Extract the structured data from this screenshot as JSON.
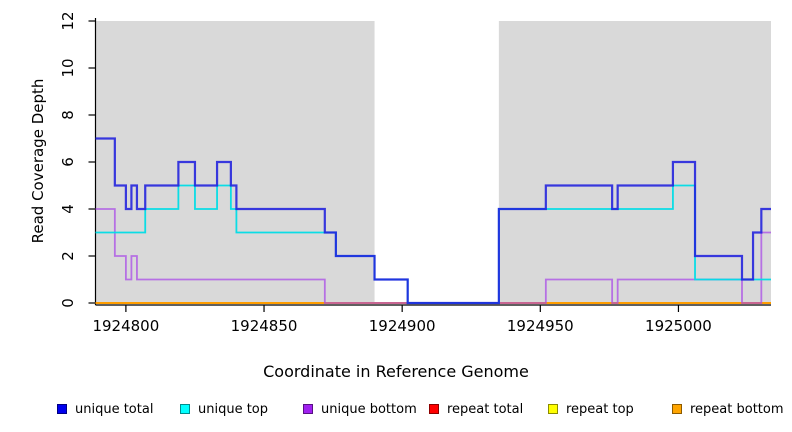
{
  "chart_data": {
    "type": "line",
    "subtype": "step",
    "title": "",
    "xlabel": "Coordinate in Reference Genome",
    "ylabel": "Read Coverage Depth",
    "xlim": [
      1924789,
      1925033.5
    ],
    "ylim": [
      0,
      12
    ],
    "x_ticks": [
      "1924800",
      "1924850",
      "1924900",
      "1924950",
      "1925000"
    ],
    "x_tick_values": [
      1924800,
      1924850,
      1924900,
      1924950,
      1925000
    ],
    "y_ticks": [
      "0",
      "2",
      "4",
      "6",
      "8",
      "10",
      "12"
    ],
    "y_tick_values": [
      0,
      2,
      4,
      6,
      8,
      10,
      12
    ],
    "grid": false,
    "legend_position": "bottom",
    "background_color": "#ffffff",
    "shaded_region_color": "#d9d9d9",
    "shaded_regions": [
      [
        1924789,
        1924890
      ],
      [
        1924935,
        1925033.5
      ]
    ],
    "axis_color": "#000000",
    "series": [
      {
        "name": "unique total",
        "color": "#0000ee",
        "line_color": "#2020dd",
        "opacity": 0.88,
        "width": 2.2,
        "points": [
          [
            1924789,
            7
          ],
          [
            1924796,
            5
          ],
          [
            1924800,
            4
          ],
          [
            1924802,
            5
          ],
          [
            1924804,
            4
          ],
          [
            1924807,
            5
          ],
          [
            1924819,
            6
          ],
          [
            1924825,
            5
          ],
          [
            1924833,
            6
          ],
          [
            1924838,
            5
          ],
          [
            1924840,
            4
          ],
          [
            1924872,
            3
          ],
          [
            1924876,
            2
          ],
          [
            1924890,
            1
          ],
          [
            1924902,
            0
          ],
          [
            1924935,
            4
          ],
          [
            1924952,
            5
          ],
          [
            1924976,
            4
          ],
          [
            1924978,
            5
          ],
          [
            1924998,
            6
          ],
          [
            1925006,
            2
          ],
          [
            1925023,
            1
          ],
          [
            1925027,
            3
          ],
          [
            1925030,
            4
          ]
        ]
      },
      {
        "name": "unique top",
        "color": "#00ffff",
        "line_color": "#00dde6",
        "opacity": 0.95,
        "width": 1.8,
        "points": [
          [
            1924789,
            3
          ],
          [
            1924807,
            4
          ],
          [
            1924819,
            5
          ],
          [
            1924825,
            4
          ],
          [
            1924833,
            5
          ],
          [
            1924838,
            4
          ],
          [
            1924840,
            3
          ],
          [
            1924876,
            2
          ],
          [
            1924890,
            1
          ],
          [
            1924902,
            0
          ],
          [
            1924935,
            4
          ],
          [
            1924998,
            5
          ],
          [
            1925006,
            1
          ]
        ]
      },
      {
        "name": "unique bottom",
        "color": "#a020f0",
        "line_color": "#a846e8",
        "opacity": 0.72,
        "width": 1.8,
        "points": [
          [
            1924789,
            4
          ],
          [
            1924796,
            2
          ],
          [
            1924800,
            1
          ],
          [
            1924802,
            2
          ],
          [
            1924804,
            1
          ],
          [
            1924872,
            0
          ],
          [
            1924952,
            1
          ],
          [
            1924976,
            0
          ],
          [
            1924978,
            1
          ],
          [
            1925023,
            0
          ],
          [
            1925030,
            3
          ]
        ]
      },
      {
        "name": "repeat total",
        "color": "#ff0000",
        "line_color": "#e02020",
        "opacity": 1,
        "width": 1.6,
        "points": [
          [
            1924789,
            0
          ]
        ]
      },
      {
        "name": "repeat top",
        "color": "#ffff00",
        "line_color": "#f0f000",
        "opacity": 1,
        "width": 1.6,
        "points": [
          [
            1924789,
            0
          ]
        ]
      },
      {
        "name": "repeat bottom",
        "color": "#ffa500",
        "line_color": "#ff9d00",
        "opacity": 1,
        "width": 2,
        "points": [
          [
            1924789,
            0
          ]
        ]
      }
    ],
    "draw_order": [
      3,
      4,
      5,
      2,
      1,
      0
    ]
  }
}
